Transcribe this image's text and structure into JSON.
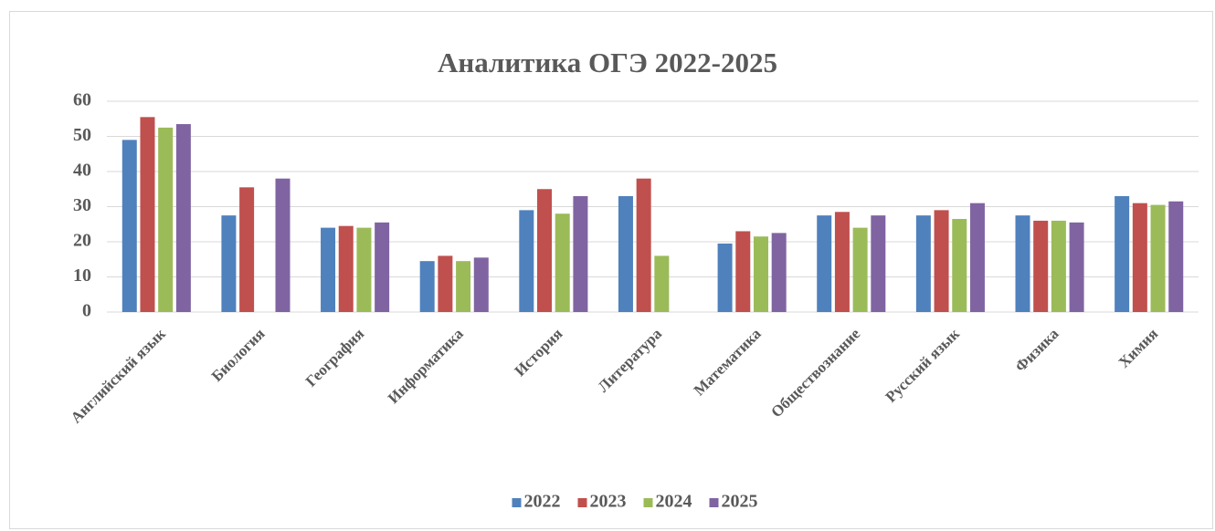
{
  "chart_data": {
    "type": "bar",
    "title": "Аналитика ОГЭ 2022-2025",
    "categories": [
      "Английский язык",
      "Биология",
      "География",
      "Информатика",
      "История",
      "Литература",
      "Математика",
      "Обществознание",
      "Русский язык",
      "Физика",
      "Химия"
    ],
    "series": [
      {
        "name": "2022",
        "color": "#4f81bd",
        "values": [
          49,
          27.5,
          24,
          14.5,
          29,
          33,
          19.5,
          27.5,
          27.5,
          27.5,
          33
        ]
      },
      {
        "name": "2023",
        "color": "#c0504d",
        "values": [
          55.5,
          35.5,
          24.5,
          16,
          35,
          38,
          23,
          28.5,
          29,
          26,
          31
        ]
      },
      {
        "name": "2024",
        "color": "#9bbb59",
        "values": [
          52.5,
          null,
          24,
          14.5,
          28,
          16,
          21.5,
          24,
          26.5,
          26,
          30.5
        ]
      },
      {
        "name": "2025",
        "color": "#8064a2",
        "values": [
          53.5,
          38,
          25.5,
          15.5,
          33,
          null,
          22.5,
          27.5,
          31,
          25.5,
          31.5
        ]
      }
    ],
    "ylim": [
      0,
      60
    ],
    "yticks": [
      0,
      10,
      20,
      30,
      40,
      50,
      60
    ],
    "grid": true,
    "legend": "bottom"
  }
}
